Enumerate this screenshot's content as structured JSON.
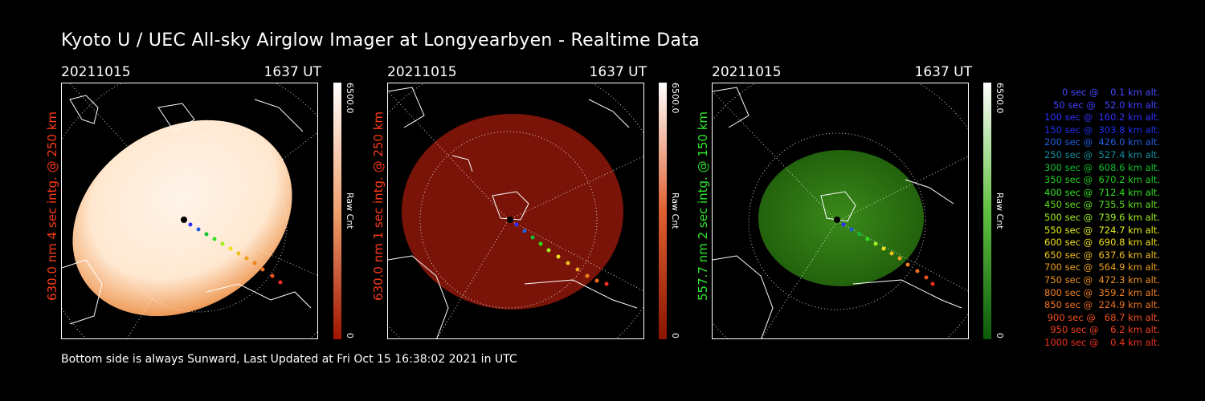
{
  "title": "Kyoto U / UEC All-sky Airglow Imager at Longyearbyen - Realtime Data",
  "footer": "Bottom side is always Sunward, Last Updated at Fri Oct 15 16:38:02 2021 in UTC",
  "panels": [
    {
      "date": "20211015",
      "time": "1637 UT",
      "ylabel": "630.0 nm 4 sec intg. @ 250 km",
      "label_color": "#ff3a1a",
      "cbar_max": "6500.0",
      "cbar_mid": "Raw Cnt",
      "cbar_min": "0",
      "fill_light": "#fff0e0",
      "fill_dark": "#d4500a",
      "cbar_top": "#ffffff",
      "cbar_bottom": "#a01500"
    },
    {
      "date": "20211015",
      "time": "1637 UT",
      "ylabel": "630.0 nm 1 sec intg. @ 250 km",
      "label_color": "#ff3a1a",
      "cbar_max": "6500.0",
      "cbar_mid": "Raw Cnt",
      "cbar_min": "0",
      "fill_light": "#8a1608",
      "fill_dark": "#5a0a04",
      "cbar_top": "#ffffff",
      "cbar_bottom": "#8a1400"
    },
    {
      "date": "20211015",
      "time": "1637 UT",
      "ylabel": "557.7 nm 2 sec intg. @ 150 km",
      "label_color": "#2ee82e",
      "cbar_max": "6500.0",
      "cbar_mid": "Raw Cnt",
      "cbar_min": "0",
      "fill_light": "#3a8a1a",
      "fill_dark": "#1e5a0a",
      "cbar_top": "#ffffff",
      "cbar_bottom": "#0a5a0a"
    }
  ],
  "legend": [
    {
      "text": "0 sec @    0.1 km alt.",
      "color": "#4848ff"
    },
    {
      "text": "50 sec @   52.0 km alt.",
      "color": "#4040ff"
    },
    {
      "text": "100 sec @  160.2 km alt.",
      "color": "#3030ff"
    },
    {
      "text": "150 sec @  303.8 km alt.",
      "color": "#2030f0"
    },
    {
      "text": "200 sec @  426.0 km alt.",
      "color": "#2060e0"
    },
    {
      "text": "250 sec @  527.4 km alt.",
      "color": "#1090a0"
    },
    {
      "text": "300 sec @  608.6 km alt.",
      "color": "#10c030"
    },
    {
      "text": "350 sec @  670.2 km alt.",
      "color": "#20d020"
    },
    {
      "text": "400 sec @  712.4 km alt.",
      "color": "#30e020"
    },
    {
      "text": "450 sec @  735.5 km alt.",
      "color": "#60e020"
    },
    {
      "text": "500 sec @  739.6 km alt.",
      "color": "#a0f020"
    },
    {
      "text": "550 sec @  724.7 km alt.",
      "color": "#e0f020"
    },
    {
      "text": "600 sec @  690.8 km alt.",
      "color": "#f0e020"
    },
    {
      "text": "650 sec @  637.6 km alt.",
      "color": "#f0c020"
    },
    {
      "text": "700 sec @  564.9 km alt.",
      "color": "#f0a020"
    },
    {
      "text": "750 sec @  472.3 km alt.",
      "color": "#f09020"
    },
    {
      "text": "800 sec @  359.2 km alt.",
      "color": "#f08020"
    },
    {
      "text": "850 sec @  224.9 km alt.",
      "color": "#f07020"
    },
    {
      "text": "900 sec @   68.7 km alt.",
      "color": "#f05020"
    },
    {
      "text": "950 sec @    6.2 km alt.",
      "color": "#f04020"
    },
    {
      "text": "1000 sec @    0.4 km alt.",
      "color": "#f03020"
    }
  ]
}
